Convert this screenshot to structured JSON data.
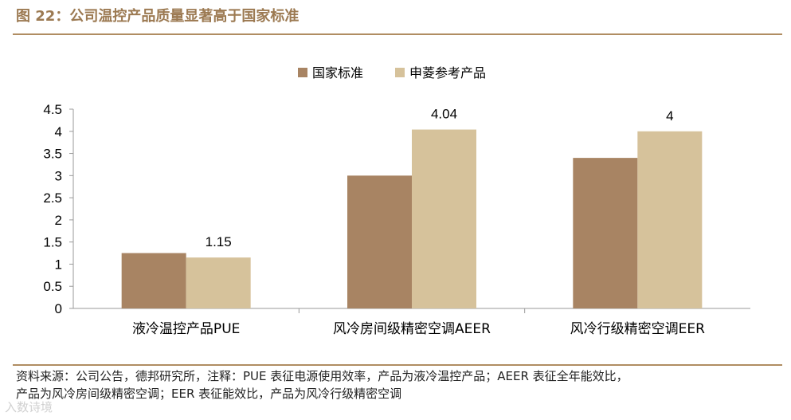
{
  "figure": {
    "title": "图 22：公司温控产品质量显著高于国家标准"
  },
  "chart_data": {
    "type": "bar",
    "categories": [
      "液冷温控产品PUE",
      "风冷房间级精密空调AEER",
      "风冷行级精密空调EER"
    ],
    "series": [
      {
        "name": "国家标准",
        "values": [
          1.25,
          3.0,
          3.4
        ],
        "color": "#a88463",
        "labels": [
          "",
          "",
          ""
        ]
      },
      {
        "name": "申菱参考产品",
        "values": [
          1.15,
          4.04,
          4.0
        ],
        "color": "#d6c29b",
        "labels": [
          "1.15",
          "4.04",
          "4"
        ]
      }
    ],
    "ylim": [
      0,
      4.5
    ],
    "yticks": [
      "0",
      "0.5",
      "1",
      "1.5",
      "2",
      "2.5",
      "3",
      "3.5",
      "4",
      "4.5"
    ],
    "legend_position": "top-center",
    "grid": false
  },
  "notes": {
    "line1": "资料来源：公司公告，德邦研究所，注释：PUE 表征电源使用效率，产品为液冷温控产品；AEER 表征全年能效比，",
    "line2": "产品为风冷房间级精密空调；EER 表征能效比，产品为风冷行级精密空调"
  },
  "watermark": "入数诗境"
}
